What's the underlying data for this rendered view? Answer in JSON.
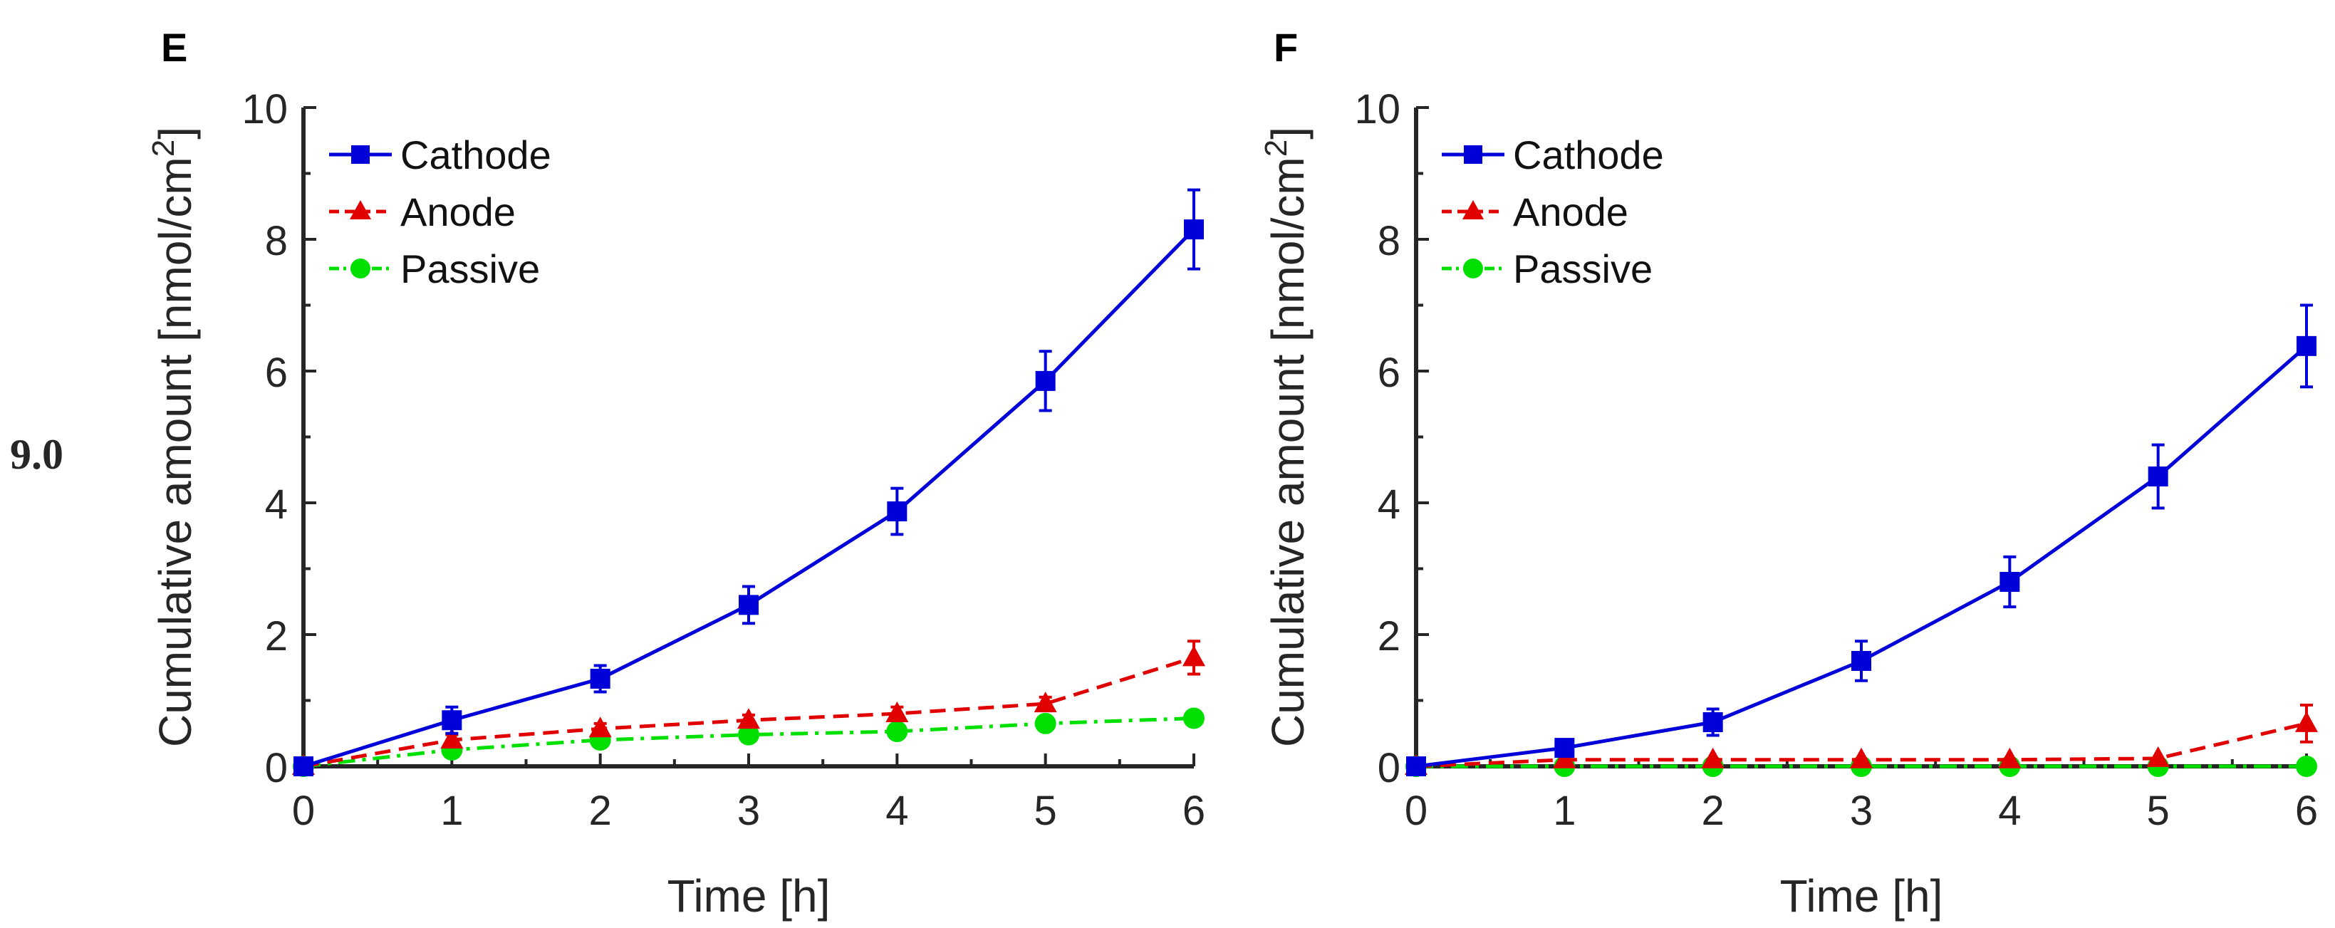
{
  "side_label": "9.0",
  "colors": {
    "cathode": "#0000d8",
    "anode": "#e00000",
    "passive": "#00e000",
    "axis": "#262626",
    "text": "#262626"
  },
  "chart_data": [
    {
      "type": "line",
      "panel_label": "E",
      "title": "",
      "xlabel": "Time [h]",
      "ylabel": "Cumulative amount [nmol/cm",
      "ylabel_superscript": "2",
      "ylabel_close": "]",
      "xlim": [
        0,
        6
      ],
      "ylim": [
        0,
        10
      ],
      "xticks": [
        0,
        1,
        2,
        3,
        4,
        5,
        6
      ],
      "yticks": [
        0,
        2,
        4,
        6,
        8,
        10
      ],
      "legend_position": "top-left",
      "x": [
        0,
        1,
        2,
        3,
        4,
        5,
        6
      ],
      "series": [
        {
          "name": "Cathode",
          "marker": "square",
          "line": "solid",
          "values": [
            0.0,
            0.7,
            1.33,
            2.45,
            3.87,
            5.85,
            8.15
          ],
          "errors": [
            0.0,
            0.2,
            0.2,
            0.28,
            0.35,
            0.45,
            0.6
          ]
        },
        {
          "name": "Anode",
          "marker": "triangle",
          "line": "dashed",
          "values": [
            0.0,
            0.4,
            0.57,
            0.7,
            0.8,
            0.95,
            1.65
          ],
          "errors": [
            0.0,
            0.08,
            0.08,
            0.08,
            0.1,
            0.1,
            0.25
          ]
        },
        {
          "name": "Passive",
          "marker": "circle",
          "line": "dashdot",
          "values": [
            0.0,
            0.25,
            0.4,
            0.48,
            0.53,
            0.65,
            0.73
          ],
          "errors": [
            0.0,
            0.0,
            0.0,
            0.0,
            0.0,
            0.0,
            0.0
          ]
        }
      ]
    },
    {
      "type": "line",
      "panel_label": "F",
      "title": "",
      "xlabel": "Time [h]",
      "ylabel": "Cumulative amount [nmol/cm",
      "ylabel_superscript": "2",
      "ylabel_close": "]",
      "xlim": [
        0,
        6
      ],
      "ylim": [
        0,
        10
      ],
      "xticks": [
        0,
        1,
        2,
        3,
        4,
        5,
        6
      ],
      "yticks": [
        0,
        2,
        4,
        6,
        8,
        10
      ],
      "legend_position": "top-left",
      "x": [
        0,
        1,
        2,
        3,
        4,
        5,
        6
      ],
      "series": [
        {
          "name": "Cathode",
          "marker": "square",
          "line": "solid",
          "values": [
            0.0,
            0.28,
            0.67,
            1.6,
            2.8,
            4.4,
            6.38
          ],
          "errors": [
            0.0,
            0.12,
            0.2,
            0.3,
            0.38,
            0.48,
            0.62
          ]
        },
        {
          "name": "Anode",
          "marker": "triangle",
          "line": "dashed",
          "values": [
            0.0,
            0.1,
            0.1,
            0.1,
            0.1,
            0.12,
            0.65
          ],
          "errors": [
            0.0,
            0.0,
            0.0,
            0.0,
            0.0,
            0.0,
            0.28
          ]
        },
        {
          "name": "Passive",
          "marker": "circle",
          "line": "dashdot",
          "values": [
            0.0,
            0.0,
            0.0,
            0.0,
            0.0,
            0.0,
            0.0
          ],
          "errors": [
            0.0,
            0.0,
            0.0,
            0.0,
            0.0,
            0.0,
            0.0
          ]
        }
      ]
    }
  ]
}
